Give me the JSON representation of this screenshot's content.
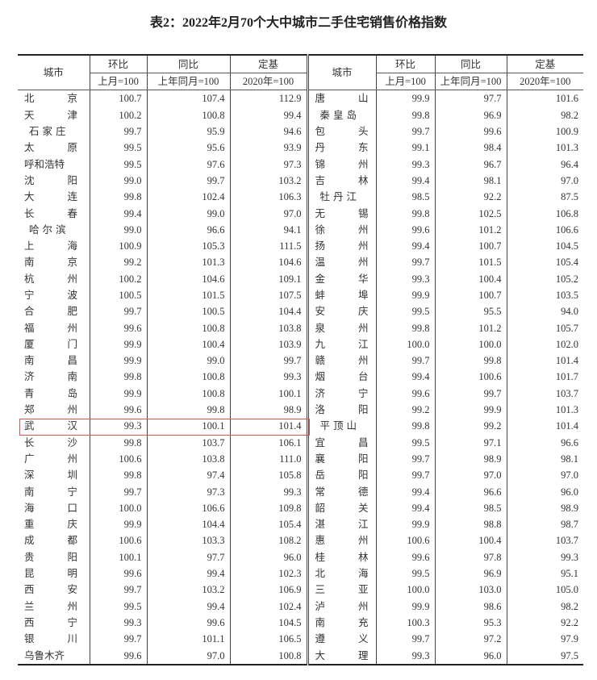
{
  "title": "表2：2022年2月70个大中城市二手住宅销售价格指数",
  "header": {
    "city": "城市",
    "mom": "环比",
    "yoy": "同比",
    "base": "定基",
    "mom_sub": "上月=100",
    "yoy_sub": "上年同月=100",
    "base_sub": "2020年=100"
  },
  "highlight": {
    "city": "武汉",
    "color": "#d9534f"
  },
  "left_rows": [
    [
      "北京",
      "100.7",
      "107.4",
      "112.9"
    ],
    [
      "天津",
      "100.2",
      "100.8",
      "99.4"
    ],
    [
      "石家庄",
      "99.7",
      "95.9",
      "94.6"
    ],
    [
      "太原",
      "99.5",
      "95.6",
      "93.9"
    ],
    [
      "呼和浩特",
      "99.5",
      "97.6",
      "97.3"
    ],
    [
      "沈阳",
      "99.0",
      "99.7",
      "103.2"
    ],
    [
      "大连",
      "99.8",
      "102.4",
      "106.3"
    ],
    [
      "长春",
      "99.4",
      "99.0",
      "97.0"
    ],
    [
      "哈尔滨",
      "99.0",
      "96.6",
      "94.1"
    ],
    [
      "上海",
      "100.9",
      "105.3",
      "111.5"
    ],
    [
      "南京",
      "99.2",
      "101.3",
      "104.6"
    ],
    [
      "杭州",
      "100.2",
      "104.6",
      "109.1"
    ],
    [
      "宁波",
      "100.5",
      "101.5",
      "107.5"
    ],
    [
      "合肥",
      "99.7",
      "100.5",
      "104.4"
    ],
    [
      "福州",
      "99.6",
      "100.8",
      "103.8"
    ],
    [
      "厦门",
      "99.9",
      "100.4",
      "103.9"
    ],
    [
      "南昌",
      "99.9",
      "99.0",
      "99.7"
    ],
    [
      "济南",
      "99.8",
      "100.8",
      "99.3"
    ],
    [
      "青岛",
      "99.9",
      "100.8",
      "100.1"
    ],
    [
      "郑州",
      "99.6",
      "99.8",
      "98.9"
    ],
    [
      "武汉",
      "99.3",
      "100.1",
      "101.4"
    ],
    [
      "长沙",
      "99.8",
      "103.7",
      "106.1"
    ],
    [
      "广州",
      "100.6",
      "103.8",
      "111.0"
    ],
    [
      "深圳",
      "99.8",
      "97.4",
      "105.8"
    ],
    [
      "南宁",
      "99.7",
      "97.3",
      "99.3"
    ],
    [
      "海口",
      "100.0",
      "106.6",
      "109.8"
    ],
    [
      "重庆",
      "99.9",
      "104.4",
      "105.4"
    ],
    [
      "成都",
      "100.6",
      "103.3",
      "108.2"
    ],
    [
      "贵阳",
      "100.1",
      "97.7",
      "96.0"
    ],
    [
      "昆明",
      "99.6",
      "99.4",
      "102.3"
    ],
    [
      "西安",
      "99.7",
      "103.2",
      "106.9"
    ],
    [
      "兰州",
      "99.5",
      "99.4",
      "102.4"
    ],
    [
      "西宁",
      "99.3",
      "99.6",
      "104.5"
    ],
    [
      "银川",
      "99.7",
      "101.1",
      "106.5"
    ],
    [
      "乌鲁木齐",
      "99.6",
      "97.0",
      "100.8"
    ]
  ],
  "right_rows": [
    [
      "唐山",
      "99.9",
      "97.7",
      "101.6"
    ],
    [
      "秦皇岛",
      "99.8",
      "96.9",
      "98.2"
    ],
    [
      "包头",
      "99.7",
      "99.6",
      "100.9"
    ],
    [
      "丹东",
      "99.1",
      "98.4",
      "101.3"
    ],
    [
      "锦州",
      "99.3",
      "96.7",
      "96.4"
    ],
    [
      "吉林",
      "99.4",
      "98.1",
      "97.0"
    ],
    [
      "牡丹江",
      "98.5",
      "92.2",
      "87.5"
    ],
    [
      "无锡",
      "99.8",
      "102.5",
      "106.8"
    ],
    [
      "徐州",
      "99.6",
      "101.2",
      "106.6"
    ],
    [
      "扬州",
      "99.4",
      "100.7",
      "104.5"
    ],
    [
      "温州",
      "99.7",
      "101.5",
      "105.4"
    ],
    [
      "金华",
      "99.3",
      "100.4",
      "105.2"
    ],
    [
      "蚌埠",
      "99.9",
      "100.7",
      "103.5"
    ],
    [
      "安庆",
      "99.5",
      "95.5",
      "94.0"
    ],
    [
      "泉州",
      "99.8",
      "101.2",
      "105.7"
    ],
    [
      "九江",
      "100.0",
      "100.0",
      "102.0"
    ],
    [
      "赣州",
      "99.7",
      "99.8",
      "101.4"
    ],
    [
      "烟台",
      "99.4",
      "100.6",
      "101.7"
    ],
    [
      "济宁",
      "99.6",
      "99.7",
      "103.7"
    ],
    [
      "洛阳",
      "99.2",
      "99.9",
      "101.3"
    ],
    [
      "平顶山",
      "99.8",
      "99.2",
      "101.4"
    ],
    [
      "宜昌",
      "99.5",
      "97.1",
      "96.6"
    ],
    [
      "襄阳",
      "99.7",
      "98.9",
      "98.1"
    ],
    [
      "岳阳",
      "99.7",
      "97.0",
      "97.0"
    ],
    [
      "常德",
      "99.4",
      "96.6",
      "96.0"
    ],
    [
      "韶关",
      "99.4",
      "98.5",
      "98.9"
    ],
    [
      "湛江",
      "99.9",
      "98.8",
      "98.7"
    ],
    [
      "惠州",
      "100.6",
      "100.4",
      "103.7"
    ],
    [
      "桂林",
      "99.6",
      "97.8",
      "99.3"
    ],
    [
      "北海",
      "99.5",
      "96.9",
      "95.1"
    ],
    [
      "三亚",
      "100.0",
      "103.0",
      "105.0"
    ],
    [
      "泸州",
      "99.9",
      "98.6",
      "98.2"
    ],
    [
      "南充",
      "100.3",
      "95.3",
      "92.2"
    ],
    [
      "遵义",
      "99.7",
      "97.2",
      "97.9"
    ],
    [
      "大理",
      "99.3",
      "96.0",
      "97.5"
    ]
  ]
}
